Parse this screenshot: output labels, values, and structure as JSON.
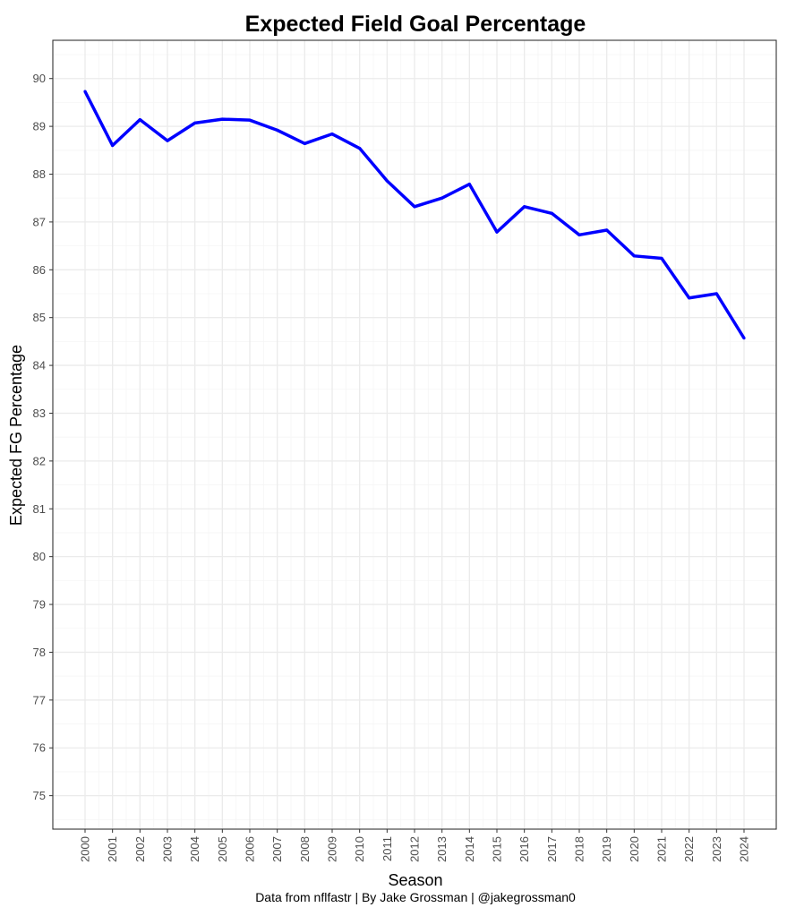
{
  "chart_data": {
    "type": "line",
    "title": "Expected Field Goal Percentage",
    "xlabel": "Season",
    "ylabel": "Expected FG Percentage",
    "caption": "Data from nflfastr | By Jake Grossman | @jakegrossman0",
    "x": [
      "2000",
      "2001",
      "2002",
      "2003",
      "2004",
      "2005",
      "2006",
      "2007",
      "2008",
      "2009",
      "2010",
      "2011",
      "2012",
      "2013",
      "2014",
      "2015",
      "2016",
      "2017",
      "2018",
      "2019",
      "2020",
      "2021",
      "2022",
      "2023",
      "2024"
    ],
    "series": [
      {
        "values": [
          89.73,
          88.6,
          89.14,
          88.7,
          89.07,
          89.15,
          89.13,
          88.92,
          88.64,
          88.84,
          88.54,
          87.86,
          87.32,
          87.5,
          87.79,
          86.79,
          87.32,
          87.18,
          86.73,
          86.83,
          86.29,
          86.24,
          85.41,
          85.5,
          84.57
        ],
        "color": "#0000ff"
      }
    ],
    "yticks": [
      75,
      76,
      77,
      78,
      79,
      80,
      81,
      82,
      83,
      84,
      85,
      86,
      87,
      88,
      89,
      90
    ],
    "ylim": [
      74.3,
      90.8
    ],
    "grid": true,
    "legend": "none",
    "theme_colors": {
      "panel_border": "#333333",
      "grid_major": "#ebebeb",
      "grid_minor": "#f5f5f5",
      "tick_text": "#4d4d4d"
    }
  }
}
